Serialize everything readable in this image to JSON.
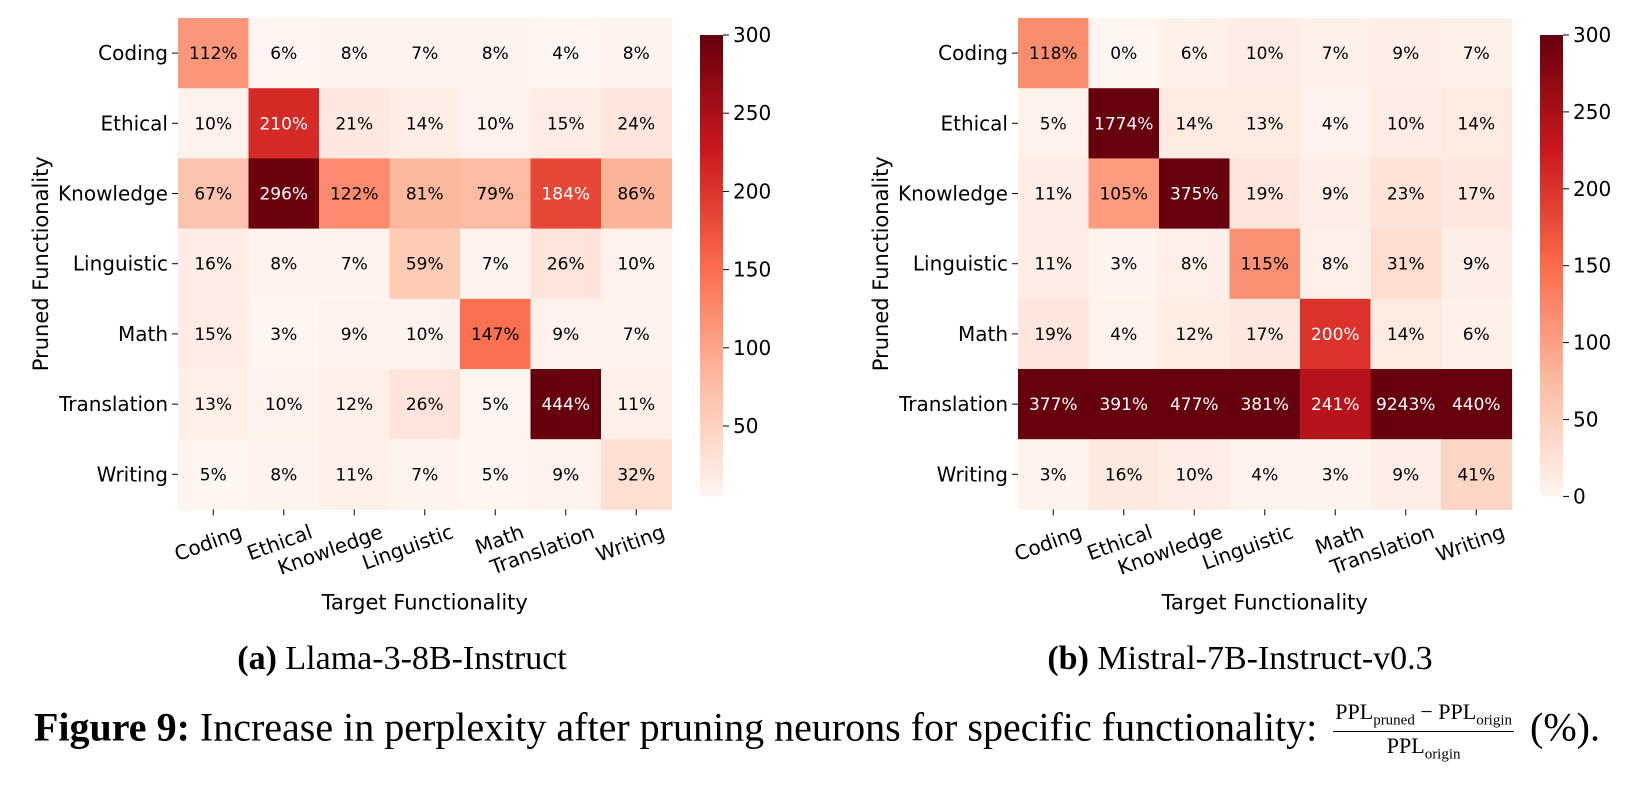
{
  "chart_data": [
    {
      "type": "heatmap",
      "title": "Llama-3-8B-Instruct",
      "subcaption_label": "(a)",
      "xlabel": "Target Functionality",
      "ylabel": "Pruned Functionality",
      "x_categories": [
        "Coding",
        "Ethical",
        "Knowledge",
        "Linguistic",
        "Math",
        "Translation",
        "Writing"
      ],
      "y_categories": [
        "Coding",
        "Ethical",
        "Knowledge",
        "Linguistic",
        "Math",
        "Translation",
        "Writing"
      ],
      "values": [
        [
          112,
          6,
          8,
          7,
          8,
          4,
          8
        ],
        [
          10,
          210,
          21,
          14,
          10,
          15,
          24
        ],
        [
          67,
          296,
          122,
          81,
          79,
          184,
          86
        ],
        [
          16,
          8,
          7,
          59,
          7,
          26,
          10
        ],
        [
          15,
          3,
          9,
          10,
          147,
          9,
          7
        ],
        [
          13,
          10,
          12,
          26,
          5,
          444,
          11
        ],
        [
          5,
          8,
          11,
          7,
          5,
          9,
          32
        ]
      ],
      "value_suffix": "%",
      "colorbar_range": [
        5,
        300
      ],
      "colorbar_ticks": [
        50,
        100,
        150,
        200,
        250,
        300
      ],
      "colormap": [
        "#fff5f0",
        "#fcbba1",
        "#fb6a4a",
        "#cb181d",
        "#67000d"
      ]
    },
    {
      "type": "heatmap",
      "title": "Mistral-7B-Instruct-v0.3",
      "subcaption_label": "(b)",
      "xlabel": "Target Functionality",
      "ylabel": "Pruned Functionality",
      "x_categories": [
        "Coding",
        "Ethical",
        "Knowledge",
        "Linguistic",
        "Math",
        "Translation",
        "Writing"
      ],
      "y_categories": [
        "Coding",
        "Ethical",
        "Knowledge",
        "Linguistic",
        "Math",
        "Translation",
        "Writing"
      ],
      "values": [
        [
          118,
          0,
          6,
          10,
          7,
          9,
          7
        ],
        [
          5,
          1774,
          14,
          13,
          4,
          10,
          14
        ],
        [
          11,
          105,
          375,
          19,
          9,
          23,
          17
        ],
        [
          11,
          3,
          8,
          115,
          8,
          31,
          9
        ],
        [
          19,
          4,
          12,
          17,
          200,
          14,
          6
        ],
        [
          377,
          391,
          477,
          381,
          241,
          9243,
          440
        ],
        [
          3,
          16,
          10,
          4,
          3,
          9,
          41
        ]
      ],
      "value_suffix": "%",
      "colorbar_range": [
        0,
        300
      ],
      "colorbar_ticks": [
        0,
        50,
        100,
        150,
        200,
        250,
        300
      ],
      "colormap": [
        "#fff5f0",
        "#fcbba1",
        "#fb6a4a",
        "#cb181d",
        "#67000d"
      ]
    }
  ],
  "caption": {
    "label": "Figure 9:",
    "text": "Increase in perplexity after pruning neurons for specific functionality:",
    "numerator_a": "PPL",
    "numerator_a_sub": "pruned",
    "minus": " − ",
    "numerator_b": "PPL",
    "numerator_b_sub": "origin",
    "denominator": "PPL",
    "denominator_sub": "origin",
    "suffix": "(%)."
  }
}
